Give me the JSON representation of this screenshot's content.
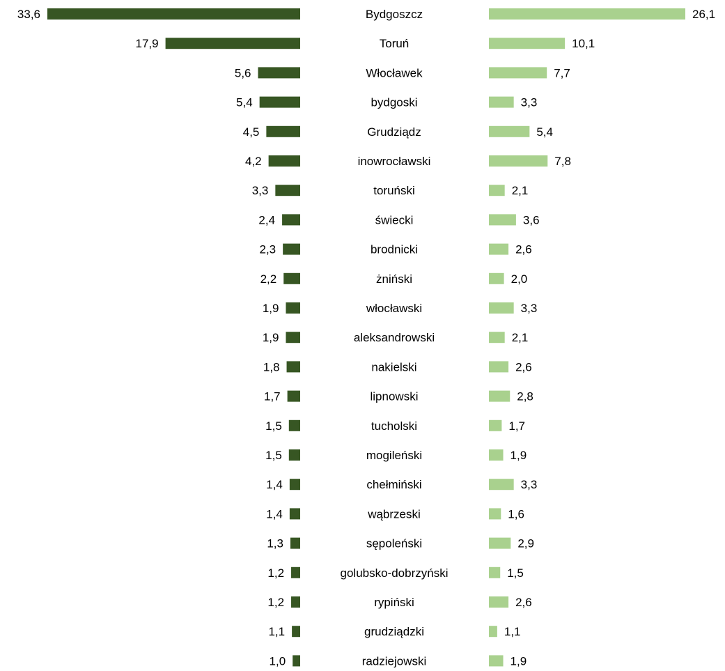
{
  "chart_data": {
    "type": "bar",
    "orientation": "horizontal-butterfly",
    "categories": [
      "Bydgoszcz",
      "Toruń",
      "Włocławek",
      "bydgoski",
      "Grudziądz",
      "inowrocławski",
      "toruński",
      "świecki",
      "brodnicki",
      "żniński",
      "włocławski",
      "aleksandrowski",
      "nakielski",
      "lipnowski",
      "tucholski",
      "mogileński",
      "chełmiński",
      "wąbrzeski",
      "sępoleński",
      "golubsko-dobrzyński",
      "rypiński",
      "grudziądzki",
      "radziejowski"
    ],
    "series": [
      {
        "side": "left",
        "color": "#375623",
        "values": [
          33.6,
          17.9,
          5.6,
          5.4,
          4.5,
          4.2,
          3.3,
          2.4,
          2.3,
          2.2,
          1.9,
          1.9,
          1.8,
          1.7,
          1.5,
          1.5,
          1.4,
          1.4,
          1.3,
          1.2,
          1.2,
          1.1,
          1.0
        ],
        "labels": [
          "33,6",
          "17,9",
          "5,6",
          "5,4",
          "4,5",
          "4,2",
          "3,3",
          "2,4",
          "2,3",
          "2,2",
          "1,9",
          "1,9",
          "1,8",
          "1,7",
          "1,5",
          "1,5",
          "1,4",
          "1,4",
          "1,3",
          "1,2",
          "1,2",
          "1,1",
          "1,0"
        ]
      },
      {
        "side": "right",
        "color": "#a9d18e",
        "values": [
          26.1,
          10.1,
          7.7,
          3.3,
          5.4,
          7.8,
          2.1,
          3.6,
          2.6,
          2.0,
          3.3,
          2.1,
          2.6,
          2.8,
          1.7,
          1.9,
          3.3,
          1.6,
          2.9,
          1.5,
          2.6,
          1.1,
          1.9
        ],
        "labels": [
          "26,1",
          "10,1",
          "7,7",
          "3,3",
          "5,4",
          "7,8",
          "2,1",
          "3,6",
          "2,6",
          "2,0",
          "3,3",
          "2,1",
          "2,6",
          "2,8",
          "1,7",
          "1,9",
          "3,3",
          "1,6",
          "2,9",
          "1,5",
          "2,6",
          "1,1",
          "1,9"
        ]
      }
    ],
    "grid": false,
    "legend": "none"
  }
}
